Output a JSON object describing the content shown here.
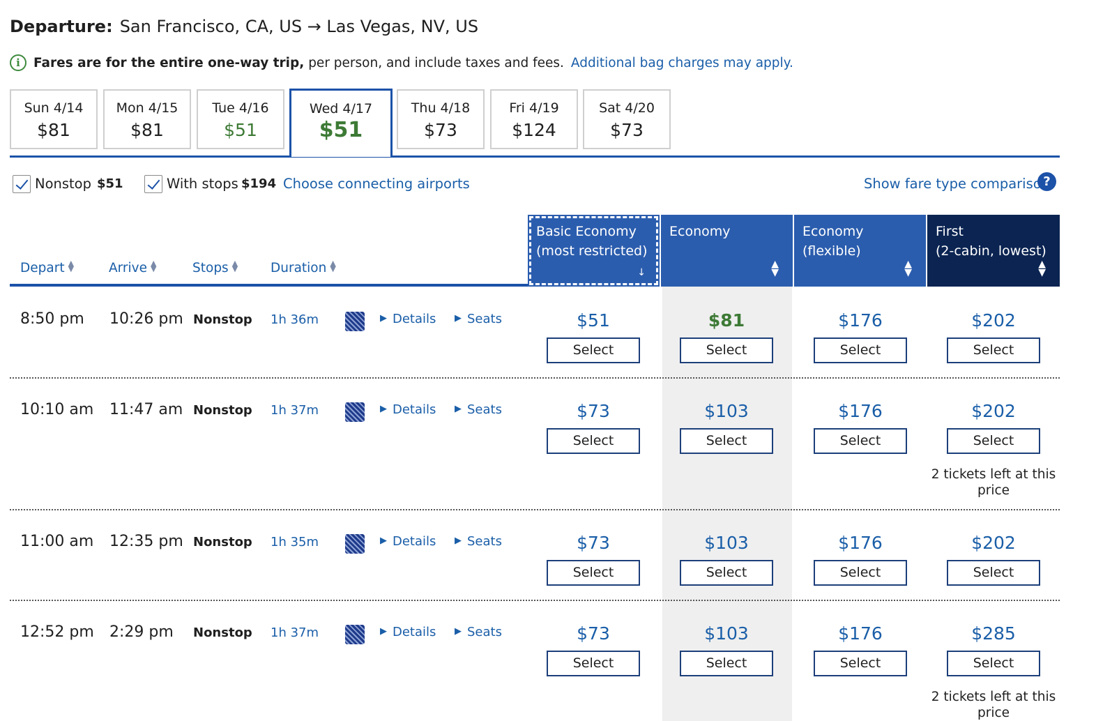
{
  "header": {
    "label": "Departure:",
    "route": "San Francisco, CA, US → Las Vegas, NV, US"
  },
  "info": {
    "bold_text": "Fares are for the entire one-way trip,",
    "text": "per person, and include taxes and fees.",
    "link": "Additional bag charges may apply."
  },
  "dates": [
    {
      "label": "Sun 4/14",
      "price": "$81"
    },
    {
      "label": "Mon 4/15",
      "price": "$81"
    },
    {
      "label": "Tue 4/16",
      "price": "$51"
    },
    {
      "label": "Wed 4/17",
      "price": "$51"
    },
    {
      "label": "Thu 4/18",
      "price": "$73"
    },
    {
      "label": "Fri 4/19",
      "price": "$124"
    },
    {
      "label": "Sat 4/20",
      "price": "$73"
    }
  ],
  "selected_date": "Wed 4/17",
  "filters": {
    "nonstop_label": "Nonstop",
    "nonstop_price": "$51",
    "nonstop_checked": true,
    "stops_label": "With stops",
    "stops_price": "$194",
    "stops_checked": true,
    "connecting_link": "Choose connecting airports",
    "compare_link": "Show fare type comparison"
  },
  "columns": {
    "depart": "Depart",
    "arrive": "Arrive",
    "stops": "Stops",
    "duration": "Duration"
  },
  "fare_types": [
    {
      "line1": "Basic Economy",
      "line2": "(most restricted)"
    },
    {
      "line1": "Economy",
      "line2": ""
    },
    {
      "line1": "Economy",
      "line2": "(flexible)"
    },
    {
      "line1": "First",
      "line2": "(2-cabin, lowest)"
    }
  ],
  "flights": [
    {
      "depart": "8:50 pm",
      "arrive": "10:26 pm",
      "stops": "Nonstop",
      "duration": "1h 36m",
      "details": "Details",
      "seats": "Seats",
      "fares": [
        "$51",
        "$81",
        "$176",
        "$202"
      ],
      "note": ""
    },
    {
      "depart": "10:10 am",
      "arrive": "11:47 am",
      "stops": "Nonstop",
      "duration": "1h 37m",
      "details": "Details",
      "seats": "Seats",
      "fares": [
        "$73",
        "$103",
        "$176",
        "$202"
      ],
      "note": "2 tickets left at this price"
    },
    {
      "depart": "11:00 am",
      "arrive": "12:35 pm",
      "stops": "Nonstop",
      "duration": "1h 35m",
      "details": "Details",
      "seats": "Seats",
      "fares": [
        "$73",
        "$103",
        "$176",
        "$202"
      ],
      "note": ""
    },
    {
      "depart": "12:52 pm",
      "arrive": "2:29 pm",
      "stops": "Nonstop",
      "duration": "1h 37m",
      "details": "Details",
      "seats": "Seats",
      "fares": [
        "$73",
        "$103",
        "$176",
        "$285"
      ],
      "note": "2 tickets left at this price"
    }
  ],
  "select_label": "Select",
  "colors": {
    "brand_blue": "#1c52a8",
    "link_blue": "#1a5ea8",
    "green": "#3d7a35",
    "first_navy": "#0b2452"
  }
}
